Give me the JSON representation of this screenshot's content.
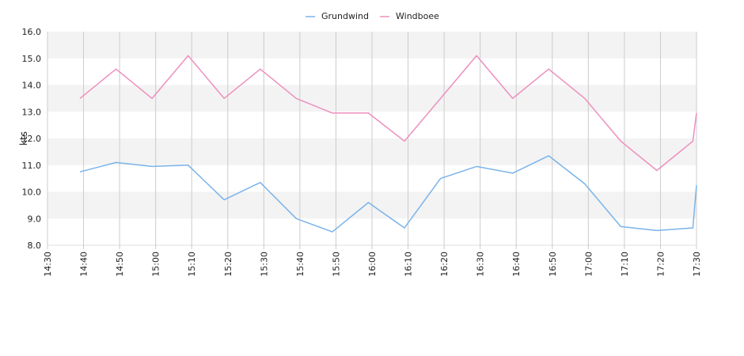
{
  "chart_data": {
    "type": "line",
    "ylabel": "kts",
    "ylim": [
      8.0,
      16.0
    ],
    "yticks": [
      "8.0",
      "9.0",
      "10.0",
      "11.0",
      "12.0",
      "13.0",
      "14.0",
      "15.0",
      "16.0"
    ],
    "xlim": [
      "14:30",
      "17:30"
    ],
    "xticks": [
      "14:30",
      "14:40",
      "14:50",
      "15:00",
      "15:10",
      "15:20",
      "15:30",
      "15:40",
      "15:50",
      "16:00",
      "16:10",
      "16:20",
      "16:30",
      "16:40",
      "16:50",
      "17:00",
      "17:10",
      "17:20",
      "17:30"
    ],
    "grid": "vertical lines, alternating horizontal bands",
    "legend_position": "top-center",
    "x": [
      "14:39",
      "14:49",
      "14:59",
      "15:09",
      "15:19",
      "15:29",
      "15:39",
      "15:49",
      "15:59",
      "16:09",
      "16:19",
      "16:29",
      "16:39",
      "16:49",
      "16:59",
      "17:09",
      "17:19",
      "17:29",
      "17:30"
    ],
    "series": [
      {
        "name": "Grundwind",
        "color": "#7ab3ea",
        "values": [
          10.75,
          11.1,
          10.95,
          11.0,
          9.7,
          10.35,
          9.0,
          8.5,
          9.6,
          8.65,
          10.5,
          10.95,
          10.7,
          11.35,
          10.3,
          8.7,
          8.55,
          8.65,
          10.25
        ]
      },
      {
        "name": "Windboee",
        "color": "#ee8fbd",
        "values": [
          13.5,
          14.6,
          13.5,
          15.1,
          13.5,
          14.6,
          13.5,
          12.95,
          12.95,
          11.9,
          13.5,
          15.1,
          13.5,
          14.6,
          13.5,
          11.9,
          10.8,
          11.9,
          12.95
        ]
      }
    ]
  }
}
